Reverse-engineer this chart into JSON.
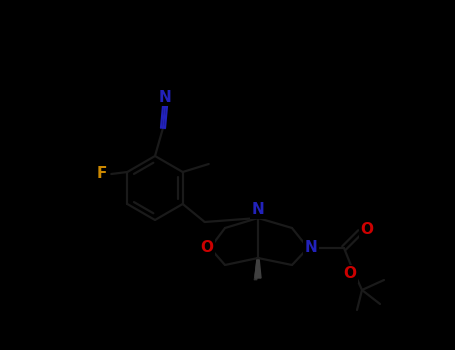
{
  "background_color": "#000000",
  "bond_color": "#1a1a1a",
  "atom_colors": {
    "N": "#2222bb",
    "O": "#cc0000",
    "F": "#cc8800"
  },
  "figsize": [
    4.55,
    3.5
  ],
  "dpi": 100,
  "lw": 1.6
}
